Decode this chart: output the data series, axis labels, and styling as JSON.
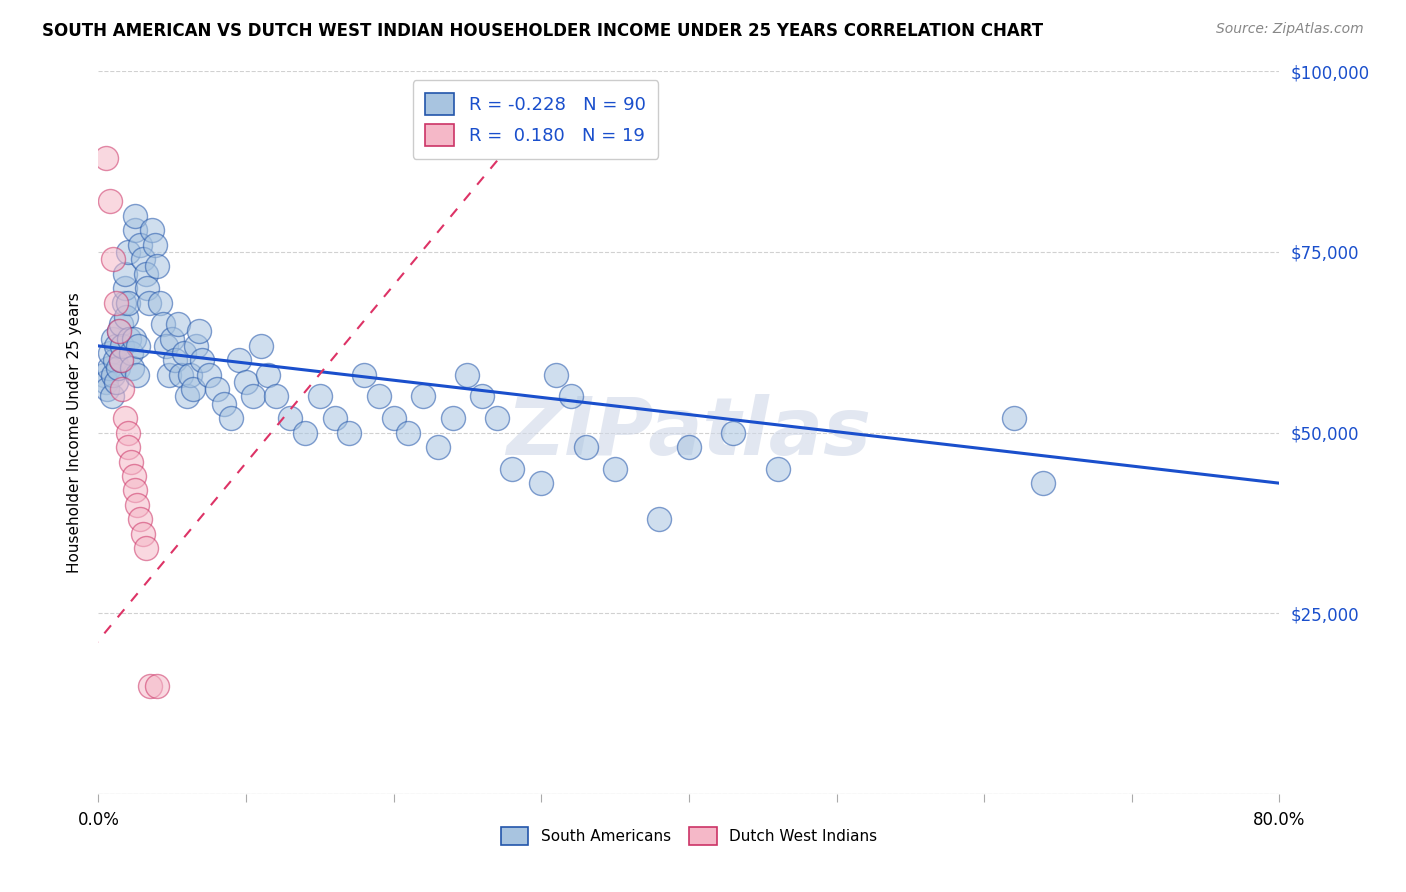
{
  "title": "SOUTH AMERICAN VS DUTCH WEST INDIAN HOUSEHOLDER INCOME UNDER 25 YEARS CORRELATION CHART",
  "source": "Source: ZipAtlas.com",
  "ylabel": "Householder Income Under 25 years",
  "xmin": 0.0,
  "xmax": 0.8,
  "ymin": 0,
  "ymax": 100000,
  "yticks": [
    0,
    25000,
    50000,
    75000,
    100000
  ],
  "ytick_labels": [
    "",
    "$25,000",
    "$50,000",
    "$75,000",
    "$100,000"
  ],
  "blue_R": -0.228,
  "blue_N": 90,
  "pink_R": 0.18,
  "pink_N": 19,
  "blue_fill": "#a8c4e0",
  "blue_edge": "#2255aa",
  "pink_fill": "#f5b8c8",
  "pink_edge": "#cc3366",
  "blue_line_color": "#1a4fcc",
  "pink_line_color": "#dd3366",
  "watermark": "ZIPatlas",
  "blue_scatter_x": [
    0.004,
    0.005,
    0.006,
    0.007,
    0.008,
    0.009,
    0.01,
    0.01,
    0.011,
    0.012,
    0.012,
    0.013,
    0.014,
    0.015,
    0.015,
    0.016,
    0.017,
    0.018,
    0.018,
    0.019,
    0.02,
    0.02,
    0.021,
    0.022,
    0.023,
    0.024,
    0.025,
    0.025,
    0.026,
    0.027,
    0.028,
    0.03,
    0.032,
    0.033,
    0.034,
    0.036,
    0.038,
    0.04,
    0.042,
    0.044,
    0.046,
    0.048,
    0.05,
    0.052,
    0.054,
    0.056,
    0.058,
    0.06,
    0.062,
    0.064,
    0.066,
    0.068,
    0.07,
    0.075,
    0.08,
    0.085,
    0.09,
    0.095,
    0.1,
    0.105,
    0.11,
    0.115,
    0.12,
    0.13,
    0.14,
    0.15,
    0.16,
    0.17,
    0.18,
    0.19,
    0.2,
    0.21,
    0.22,
    0.23,
    0.24,
    0.25,
    0.26,
    0.27,
    0.28,
    0.3,
    0.31,
    0.32,
    0.33,
    0.35,
    0.38,
    0.4,
    0.43,
    0.46,
    0.62,
    0.64
  ],
  "blue_scatter_y": [
    58000,
    57000,
    56000,
    59000,
    61000,
    55000,
    63000,
    58000,
    60000,
    57000,
    62000,
    59000,
    64000,
    65000,
    60000,
    62000,
    68000,
    70000,
    72000,
    66000,
    75000,
    68000,
    63000,
    61000,
    59000,
    63000,
    78000,
    80000,
    58000,
    62000,
    76000,
    74000,
    72000,
    70000,
    68000,
    78000,
    76000,
    73000,
    68000,
    65000,
    62000,
    58000,
    63000,
    60000,
    65000,
    58000,
    61000,
    55000,
    58000,
    56000,
    62000,
    64000,
    60000,
    58000,
    56000,
    54000,
    52000,
    60000,
    57000,
    55000,
    62000,
    58000,
    55000,
    52000,
    50000,
    55000,
    52000,
    50000,
    58000,
    55000,
    52000,
    50000,
    55000,
    48000,
    52000,
    58000,
    55000,
    52000,
    45000,
    43000,
    58000,
    55000,
    48000,
    45000,
    38000,
    48000,
    50000,
    45000,
    52000,
    43000
  ],
  "pink_scatter_x": [
    0.005,
    0.008,
    0.01,
    0.012,
    0.014,
    0.015,
    0.016,
    0.018,
    0.02,
    0.02,
    0.022,
    0.024,
    0.025,
    0.026,
    0.028,
    0.03,
    0.032,
    0.035,
    0.04
  ],
  "pink_scatter_y": [
    88000,
    82000,
    74000,
    68000,
    64000,
    60000,
    56000,
    52000,
    50000,
    48000,
    46000,
    44000,
    42000,
    40000,
    38000,
    36000,
    34000,
    15000,
    15000
  ],
  "blue_trend": [
    0.0,
    62000,
    0.8,
    43000
  ],
  "pink_trend": [
    -0.005,
    20000,
    0.3,
    95000
  ]
}
